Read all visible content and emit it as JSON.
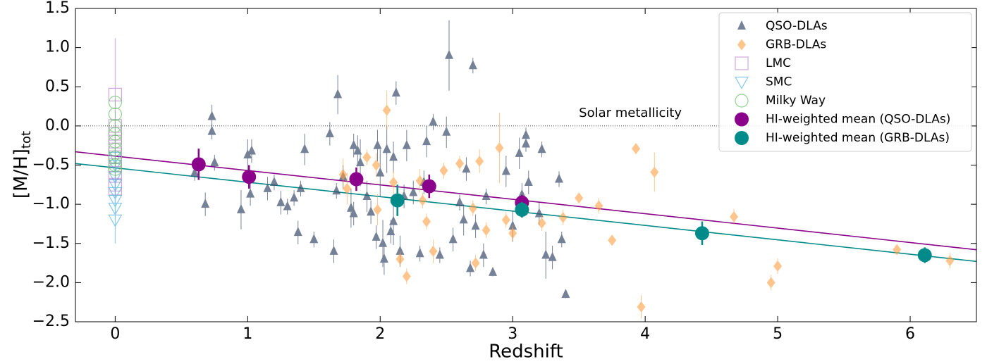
{
  "chart_data": {
    "type": "scatter",
    "xlabel": "Redshift",
    "ylabel": "[M/H]",
    "ylabel_sub": "tot",
    "xlim": [
      -0.3,
      6.5
    ],
    "ylim": [
      -2.5,
      1.5
    ],
    "xticks": [
      0,
      1,
      2,
      3,
      4,
      5,
      6
    ],
    "yticks": [
      {
        "value": -2.5,
        "label": "−2.5"
      },
      {
        "value": -2,
        "label": "−2.0"
      },
      {
        "value": -1.5,
        "label": "−1.5"
      },
      {
        "value": -1,
        "label": "−1.0"
      },
      {
        "value": -0.5,
        "label": "−0.5"
      },
      {
        "value": 0,
        "label": "0.0"
      },
      {
        "value": 0.5,
        "label": "0.5"
      },
      {
        "value": 1,
        "label": "1.0"
      },
      {
        "value": 1.5,
        "label": "1.5"
      }
    ],
    "legend": "upper right",
    "hline": 0,
    "annotation": {
      "text": "Solar metallicity",
      "x": 3.5,
      "y": 0.16
    },
    "lines": [
      {
        "color": "#8b008b",
        "x": [
          -0.3,
          6.5
        ],
        "y": [
          -0.33,
          -1.58
        ]
      },
      {
        "color": "#008b8b",
        "x": [
          -0.3,
          6.5
        ],
        "y": [
          -0.48,
          -1.73
        ]
      }
    ],
    "series": [
      {
        "name": "QSO-DLAs",
        "color": "#3b4d6b",
        "marker": "triangle-up",
        "opacity": 0.7,
        "x": [
          0.6,
          0.68,
          0.73,
          0.73,
          0.75,
          0.95,
          1.0,
          1.02,
          1.03,
          1.15,
          1.2,
          1.25,
          1.3,
          1.35,
          1.38,
          1.4,
          1.43,
          1.5,
          1.62,
          1.65,
          1.67,
          1.68,
          1.72,
          1.78,
          1.8,
          1.8,
          1.83,
          1.85,
          1.9,
          1.93,
          1.97,
          1.98,
          2.0,
          2.02,
          2.03,
          2.05,
          2.08,
          2.1,
          2.1,
          2.12,
          2.15,
          2.18,
          2.2,
          2.25,
          2.3,
          2.33,
          2.35,
          2.4,
          2.45,
          2.5,
          2.52,
          2.55,
          2.6,
          2.63,
          2.65,
          2.68,
          2.7,
          2.72,
          2.78,
          2.8,
          2.85,
          2.95,
          3.0,
          3.05,
          3.07,
          3.1,
          3.1,
          3.12,
          3.2,
          3.22,
          3.25,
          3.3,
          3.35,
          3.37,
          3.4
        ],
        "y": [
          -0.6,
          -1.0,
          0.12,
          -0.07,
          -0.47,
          -1.07,
          -0.37,
          -0.87,
          -0.32,
          -0.8,
          -0.72,
          -0.98,
          -1.03,
          -0.92,
          -1.36,
          -0.8,
          -0.3,
          -1.45,
          -0.1,
          -1.6,
          -0.83,
          0.4,
          -0.65,
          -1.05,
          -0.25,
          -1.12,
          -0.32,
          -0.47,
          -0.9,
          -1.1,
          -1.42,
          -0.25,
          -0.6,
          -1.5,
          -1.7,
          -0.3,
          -1.35,
          -1.22,
          -0.4,
          0.42,
          -1.6,
          -0.9,
          -0.25,
          -0.85,
          -1.63,
          -0.72,
          -0.2,
          0.05,
          -1.65,
          -0.08,
          0.9,
          -1.45,
          -0.98,
          -1.2,
          -0.55,
          -1.82,
          0.77,
          -1.28,
          -1.65,
          -0.9,
          -1.87,
          -0.58,
          -1.28,
          -0.35,
          -0.88,
          -0.12,
          -0.23,
          -0.72,
          -1.12,
          -0.3,
          -1.65,
          -1.68,
          -0.68,
          -1.45,
          -2.15
        ],
        "errors": [
          0.1,
          0.15,
          0.15,
          0.1,
          0.1,
          0.25,
          0.2,
          0.15,
          0.15,
          0.15,
          0.1,
          0.15,
          0.1,
          0.1,
          0.15,
          0.1,
          0.2,
          0.1,
          0.15,
          0.15,
          0.1,
          0.25,
          0.15,
          0.25,
          0.15,
          0.15,
          0.2,
          0.3,
          0.2,
          0.15,
          0.15,
          0.2,
          0.3,
          0.3,
          0.2,
          0.3,
          0.15,
          0.3,
          0.2,
          0.15,
          0.2,
          0.15,
          0.2,
          0.15,
          0.1,
          0.15,
          0.2,
          0.1,
          0.1,
          0.2,
          0.45,
          0.15,
          0.1,
          0.2,
          0.15,
          0.1,
          0.1,
          0.15,
          0.15,
          0.1,
          0.05,
          0.2,
          0.2,
          0.2,
          0.15,
          0.1,
          0.1,
          0.15,
          0.15,
          0.1,
          0.3,
          0.15,
          0.1,
          0.1,
          0.05
        ]
      },
      {
        "name": "GRB-DLAs",
        "color": "#ffa040",
        "marker": "diamond",
        "opacity": 0.6,
        "x": [
          1.72,
          1.75,
          1.9,
          1.97,
          1.98,
          2.05,
          2.1,
          2.15,
          2.2,
          2.3,
          2.32,
          2.35,
          2.4,
          2.48,
          2.6,
          2.7,
          2.72,
          2.75,
          2.8,
          2.9,
          2.95,
          3.0,
          3.08,
          3.22,
          3.38,
          3.5,
          3.65,
          3.75,
          3.93,
          3.97,
          4.07,
          4.67,
          4.95,
          5.0,
          5.9,
          6.3
        ],
        "y": [
          -0.62,
          -0.8,
          -0.4,
          -0.5,
          -1.07,
          0.2,
          -0.72,
          -1.7,
          -1.92,
          -0.7,
          -0.95,
          -1.22,
          -1.6,
          -0.57,
          -0.48,
          -1.05,
          -1.75,
          -0.45,
          -1.33,
          -0.28,
          -1.2,
          -1.37,
          -1.0,
          -1.24,
          -1.17,
          -0.92,
          -1.02,
          -1.46,
          -0.29,
          -2.31,
          -0.59,
          -1.16,
          -2.0,
          -1.79,
          -1.58,
          -1.72
        ],
        "errors": [
          0.2,
          0.2,
          0.1,
          0.15,
          0.2,
          0.25,
          0.15,
          0.1,
          0.1,
          0.15,
          0.1,
          0.1,
          0.15,
          0.1,
          0.1,
          0.1,
          0.1,
          0.15,
          0.1,
          0.45,
          0.1,
          0.1,
          0.1,
          0.1,
          0.1,
          0.05,
          0.1,
          0.05,
          0.05,
          0.15,
          0.25,
          0.1,
          0.1,
          0.1,
          0.05,
          0.1
        ]
      },
      {
        "name": "LMC",
        "color": "#c080d0",
        "marker": "square",
        "opacity": 0.7,
        "x": [
          0,
          0,
          0,
          0,
          0,
          0,
          0,
          0,
          0,
          0
        ],
        "y": [
          -0.8,
          -0.75,
          -0.6,
          -0.5,
          -0.4,
          -0.3,
          -0.2,
          -0.1,
          0.0,
          0.4
        ],
        "errors": [
          0.1,
          0.1,
          0.1,
          0.1,
          0.1,
          0.1,
          0.1,
          0.1,
          0.1,
          0.72
        ]
      },
      {
        "name": "SMC",
        "color": "#50b0e8",
        "marker": "triangle-down",
        "opacity": 0.7,
        "x": [
          0,
          0,
          0,
          0,
          0,
          0,
          0,
          0
        ],
        "y": [
          -1.2,
          -1.05,
          -0.95,
          -0.85,
          -0.75,
          -0.65,
          -0.5,
          -0.4
        ],
        "errors": [
          0.3,
          0.15,
          0.1,
          0.1,
          0.1,
          0.1,
          0.1,
          0.1
        ]
      },
      {
        "name": "Milky Way",
        "color": "#60c060",
        "marker": "circle",
        "opacity": 0.7,
        "x": [
          0,
          0,
          0,
          0,
          0,
          0,
          0,
          0,
          0
        ],
        "y": [
          0.3,
          0.15,
          0.0,
          -0.1,
          -0.2,
          -0.3,
          -0.4,
          -0.5,
          -0.55
        ],
        "errors": [
          0.05,
          0.05,
          0.05,
          0.05,
          0.05,
          0.05,
          0.05,
          0.05,
          0.05
        ]
      },
      {
        "name": "HI-weighted mean (QSO-DLAs)",
        "color": "#8b008b",
        "marker": "big-circle",
        "opacity": 1,
        "x": [
          0.63,
          1.01,
          1.82,
          2.37,
          3.07
        ],
        "y": [
          -0.49,
          -0.65,
          -0.68,
          -0.77,
          -0.98
        ],
        "errors": [
          0.2,
          0.15,
          0.15,
          0.15,
          0.1
        ]
      },
      {
        "name": "HI-weighted mean (GRB-DLAs)",
        "color": "#008b8b",
        "marker": "big-circle",
        "opacity": 1,
        "x": [
          2.13,
          3.07,
          4.43,
          6.11
        ],
        "y": [
          -0.95,
          -1.07,
          -1.37,
          -1.65
        ],
        "errors": [
          0.2,
          0.1,
          0.15,
          0.1
        ]
      }
    ]
  }
}
